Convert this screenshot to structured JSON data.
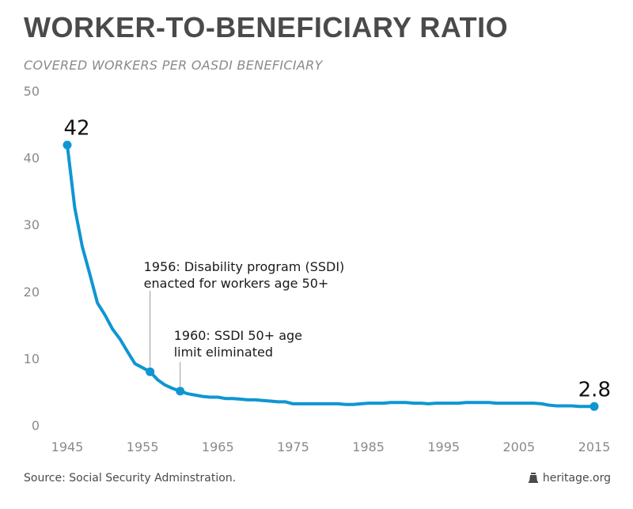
{
  "header": {
    "title": "WORKER-TO-BENEFICIARY RATIO",
    "subtitle": "COVERED WORKERS PER OASDI BENEFICIARY"
  },
  "footer": {
    "source": "Source: Social Security Adminstration.",
    "brand": "heritage.org",
    "brand_icon": "liberty-bell-icon"
  },
  "colors": {
    "line": "#0f96d2",
    "axis_text": "#8a8a8a",
    "annotation_text": "#1a1a1a",
    "leader_line": "#9a9a9a"
  },
  "chart_data": {
    "type": "line",
    "title": "WORKER-TO-BENEFICIARY RATIO",
    "subtitle": "COVERED WORKERS PER OASDI BENEFICIARY",
    "xlabel": "",
    "ylabel": "",
    "xlim": [
      1945,
      2015
    ],
    "ylim": [
      0,
      50
    ],
    "x_ticks": [
      1945,
      1955,
      1965,
      1975,
      1985,
      1995,
      2005,
      2015
    ],
    "y_ticks": [
      0,
      10,
      20,
      30,
      40,
      50
    ],
    "grid": false,
    "legend": "none",
    "series": [
      {
        "x": [
          1945,
          1946,
          1947,
          1948,
          1949,
          1950,
          1951,
          1952,
          1953,
          1954,
          1955,
          1956,
          1957,
          1958,
          1959,
          1960,
          1961,
          1962,
          1963,
          1964,
          1965,
          1966,
          1967,
          1968,
          1969,
          1970,
          1971,
          1972,
          1973,
          1974,
          1975,
          1976,
          1977,
          1978,
          1979,
          1980,
          1981,
          1982,
          1983,
          1984,
          1985,
          1986,
          1987,
          1988,
          1989,
          1990,
          1991,
          1992,
          1993,
          1994,
          1995,
          1996,
          1997,
          1998,
          1999,
          2000,
          2001,
          2002,
          2003,
          2004,
          2005,
          2006,
          2007,
          2008,
          2009,
          2010,
          2011,
          2012,
          2013,
          2014,
          2015
        ],
        "values": [
          41.9,
          32.5,
          26.7,
          22.6,
          18.3,
          16.5,
          14.4,
          12.9,
          11.0,
          9.2,
          8.6,
          8.0,
          6.8,
          6.0,
          5.5,
          5.1,
          4.7,
          4.5,
          4.3,
          4.2,
          4.2,
          4.0,
          4.0,
          3.9,
          3.8,
          3.8,
          3.7,
          3.6,
          3.5,
          3.5,
          3.2,
          3.2,
          3.2,
          3.2,
          3.2,
          3.2,
          3.2,
          3.1,
          3.1,
          3.2,
          3.3,
          3.3,
          3.3,
          3.4,
          3.4,
          3.4,
          3.3,
          3.3,
          3.2,
          3.3,
          3.3,
          3.3,
          3.3,
          3.4,
          3.4,
          3.4,
          3.4,
          3.3,
          3.3,
          3.3,
          3.3,
          3.3,
          3.3,
          3.2,
          3.0,
          2.9,
          2.9,
          2.9,
          2.8,
          2.8,
          2.8
        ]
      }
    ],
    "highlighted_points": [
      {
        "x": 1945,
        "y": 41.9,
        "label": "42"
      },
      {
        "x": 1956,
        "y": 8.0,
        "label": ""
      },
      {
        "x": 1960,
        "y": 5.1,
        "label": ""
      },
      {
        "x": 2015,
        "y": 2.8,
        "label": "2.8"
      }
    ],
    "annotations": [
      {
        "x": 1956,
        "y": 8.0,
        "lines": [
          "1956: Disability program (SSDI)",
          "enacted for workers age 50+"
        ]
      },
      {
        "x": 1960,
        "y": 5.1,
        "lines": [
          "1960: SSDI 50+ age",
          "limit eliminated"
        ]
      }
    ]
  }
}
